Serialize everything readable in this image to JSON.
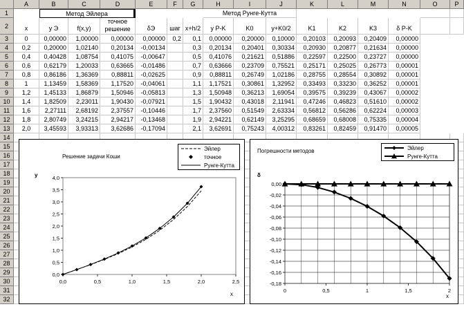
{
  "columns": [
    "A",
    "B",
    "C",
    "D",
    "E",
    "F",
    "G",
    "H",
    "I",
    "J",
    "K",
    "L",
    "M",
    "N",
    "O",
    "P"
  ],
  "rows": [
    "1",
    "2",
    "3",
    "4",
    "5",
    "6",
    "7",
    "8",
    "9",
    "10",
    "11",
    "12",
    "13",
    "14",
    "15",
    "16",
    "17",
    "18",
    "19",
    "20",
    "21",
    "22",
    "23",
    "24",
    "25",
    "26",
    "27",
    "28",
    "29",
    "30",
    "31",
    "32"
  ],
  "row1": {
    "euler_title": "Метод Эйлера",
    "rk_title": "Метод Рунге-Кутта"
  },
  "headers": [
    "x",
    "y Э",
    "f(x,y)",
    "точное решение",
    "δЭ",
    "шаг",
    "x+h/2",
    "y P-K",
    "K0",
    "y+K0/2",
    "K1",
    "K2",
    "K3",
    "δ P-K"
  ],
  "table": [
    [
      "0",
      "0,00000",
      "1,00000",
      "0,00000",
      "0,00000",
      "0,2",
      "0,1",
      "0,00000",
      "0,20000",
      "0,10000",
      "0,20103",
      "0,20093",
      "0,20409",
      "0,00000"
    ],
    [
      "0,2",
      "0,20000",
      "1,02140",
      "0,20134",
      "-0,00134",
      "",
      "0,3",
      "0,20134",
      "0,20401",
      "0,30334",
      "0,20930",
      "0,20877",
      "0,21634",
      "0,00000"
    ],
    [
      "0,4",
      "0,40428",
      "1,08754",
      "0,41075",
      "-0,00647",
      "",
      "0,5",
      "0,41076",
      "0,21621",
      "0,51886",
      "0,22597",
      "0,22500",
      "0,23727",
      "0,00000"
    ],
    [
      "0,6",
      "0,62179",
      "1,20033",
      "0,63665",
      "-0,01486",
      "",
      "0,7",
      "0,63666",
      "0,23709",
      "0,75521",
      "0,25171",
      "0,25025",
      "0,26773",
      "0,00001"
    ],
    [
      "0,8",
      "0,86186",
      "1,36369",
      "0,88811",
      "-0,02625",
      "",
      "0,9",
      "0,88811",
      "0,26749",
      "1,02186",
      "0,28755",
      "0,28554",
      "0,30892",
      "0,00001"
    ],
    [
      "1",
      "1,13459",
      "1,58369",
      "1,17520",
      "-0,04061",
      "",
      "1,1",
      "1,17521",
      "0,30861",
      "1,32952",
      "0,33493",
      "0,33230",
      "0,36252",
      "0,00001"
    ],
    [
      "1,2",
      "1,45133",
      "1,86879",
      "1,50946",
      "-0,05813",
      "",
      "1,3",
      "1,50948",
      "0,36213",
      "1,69054",
      "0,39575",
      "0,39239",
      "0,43067",
      "0,00002"
    ],
    [
      "1,4",
      "1,82509",
      "2,23011",
      "1,90430",
      "-0,07921",
      "",
      "1,5",
      "1,90432",
      "0,43018",
      "2,11941",
      "0,47246",
      "0,46823",
      "0,51610",
      "0,00002"
    ],
    [
      "1,6",
      "2,27111",
      "2,68192",
      "2,37557",
      "-0,10446",
      "",
      "1,7",
      "2,37560",
      "0,51549",
      "2,63334",
      "0,56812",
      "0,56286",
      "0,62224",
      "0,00003"
    ],
    [
      "1,8",
      "2,80749",
      "3,24215",
      "2,94217",
      "-0,13468",
      "",
      "1,9",
      "2,94221",
      "0,62149",
      "3,25295",
      "0,68659",
      "0,68008",
      "0,75335",
      "0,00004"
    ],
    [
      "2,0",
      "3,45593",
      "3,93313",
      "3,62686",
      "-0,17094",
      "",
      "2,1",
      "3,62691",
      "0,75243",
      "4,00312",
      "0,83261",
      "0,82459",
      "0,91470",
      "0,00005"
    ]
  ],
  "chart1": {
    "title": "Решение задачи Коши",
    "ylabel": "y",
    "xlabel": "x",
    "legend": [
      "Эйлер",
      "точное",
      "Рунге-Кутта"
    ],
    "x_ticks": [
      "0,0",
      "0,5",
      "1,0",
      "1,5",
      "2,0",
      "2,5"
    ],
    "y_ticks": [
      "0,0",
      "0,5",
      "1,0",
      "1,5",
      "2,0",
      "2,5",
      "3,0",
      "3,5",
      "4,0"
    ]
  },
  "chart2": {
    "title": "Погрешности  методов",
    "ylabel": "δ",
    "xlabel": "x",
    "legend": [
      "Эйлер",
      "Рунге-Кутта"
    ],
    "x_ticks": [
      "0",
      "0,5",
      "1",
      "1,5",
      "2"
    ],
    "y_ticks": [
      "0,00",
      "-0,02",
      "-0,04",
      "-0,06",
      "-0,08",
      "-0,10",
      "-0,12",
      "-0,14",
      "-0,16",
      "-0,18"
    ]
  },
  "chart_data": [
    {
      "type": "line",
      "title": "Решение задачи Коши",
      "xlabel": "x",
      "ylabel": "y",
      "xlim": [
        0,
        2.5
      ],
      "ylim": [
        0,
        4
      ],
      "x": [
        0,
        0.2,
        0.4,
        0.6,
        0.8,
        1.0,
        1.2,
        1.4,
        1.6,
        1.8,
        2.0
      ],
      "series": [
        {
          "name": "Эйлер",
          "values": [
            0,
            0.2,
            0.40428,
            0.62179,
            0.86186,
            1.13459,
            1.45133,
            1.82509,
            2.27111,
            2.80749,
            3.45593
          ]
        },
        {
          "name": "точное",
          "values": [
            0,
            0.20134,
            0.41075,
            0.63665,
            0.88811,
            1.1752,
            1.50946,
            1.9043,
            2.37557,
            2.94217,
            3.62686
          ]
        },
        {
          "name": "Рунге-Кутта",
          "values": [
            0,
            0.20134,
            0.41076,
            0.63666,
            0.88811,
            1.17521,
            1.50948,
            1.90432,
            2.3756,
            2.94221,
            3.62691
          ]
        }
      ],
      "legend_position": "top-right",
      "grid": false
    },
    {
      "type": "line",
      "title": "Погрешности  методов",
      "xlabel": "x",
      "ylabel": "δ",
      "xlim": [
        0,
        2
      ],
      "ylim": [
        -0.18,
        0
      ],
      "x": [
        0,
        0.2,
        0.4,
        0.6,
        0.8,
        1.0,
        1.2,
        1.4,
        1.6,
        1.8,
        2.0
      ],
      "series": [
        {
          "name": "Эйлер",
          "values": [
            0,
            -0.00134,
            -0.00647,
            -0.01486,
            -0.02625,
            -0.04061,
            -0.05813,
            -0.07921,
            -0.10446,
            -0.13468,
            -0.17094
          ]
        },
        {
          "name": "Рунге-Кутта",
          "values": [
            0,
            0,
            0,
            1e-05,
            1e-05,
            1e-05,
            2e-05,
            2e-05,
            3e-05,
            4e-05,
            5e-05
          ]
        }
      ],
      "legend_position": "top-right",
      "grid": true
    }
  ]
}
